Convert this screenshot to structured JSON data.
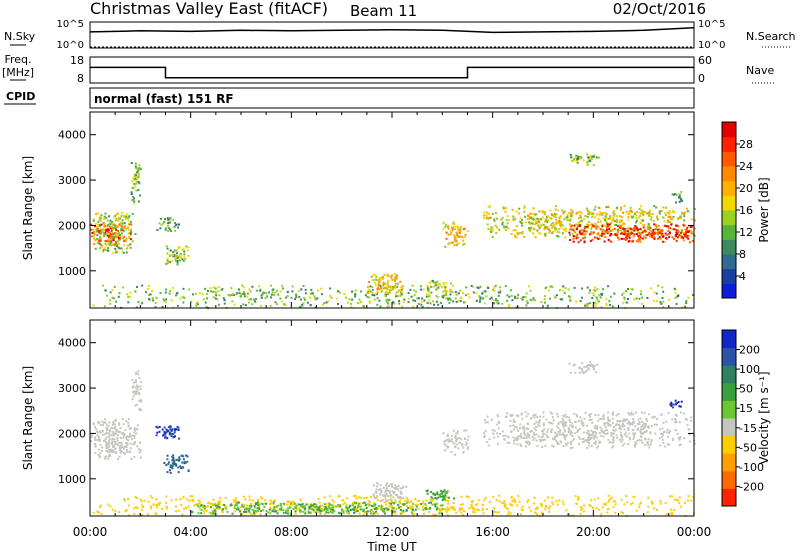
{
  "header": {
    "radar": "Christmas Valley East (fitACF)",
    "beam": "Beam 11",
    "date": "02/Oct/2016"
  },
  "params": {
    "nsky_label": "N.Sky",
    "nsky_ticks": [
      "10^5",
      "10^0"
    ],
    "nsearch_label": "N.Search",
    "nsearch_ticks": [
      "10^5",
      "10^0"
    ],
    "freq_label_1": "Freq.",
    "freq_label_2": "[MHz]",
    "freq_ticks": [
      "18",
      "8"
    ],
    "nave_label": "Nave",
    "nave_ticks": [
      "60",
      "0"
    ],
    "cpid_label": "CPID",
    "cpid_value": "normal (fast) 151 RF"
  },
  "axes": {
    "ylabel": "Slant Range [km]",
    "yticks": [
      "4000",
      "3000",
      "2000",
      "1000"
    ],
    "xlabel": "Time UT",
    "xticks": [
      "00:00",
      "04:00",
      "08:00",
      "12:00",
      "16:00",
      "20:00",
      "00:00"
    ]
  },
  "colorbars": {
    "power": {
      "label": "Power [dB]",
      "ticks": [
        "28",
        "24",
        "20",
        "16",
        "12",
        "8",
        "4"
      ],
      "colors": [
        "#0b1fd6",
        "#1a3fa0",
        "#2f6b8f",
        "#3d8a5c",
        "#57b43a",
        "#9bd21e",
        "#f0d800",
        "#ffb000",
        "#ff8a00",
        "#ff5a00",
        "#ff2200",
        "#e00000"
      ]
    },
    "velocity": {
      "label": "Velocity [m s⁻¹]",
      "ticks": [
        "200",
        "100",
        "50",
        "15",
        "-15",
        "-50",
        "-100",
        "-200"
      ],
      "colors": [
        "#1226c8",
        "#2b54a8",
        "#2f8060",
        "#38a040",
        "#6cc830",
        "#c6c6c0",
        "#ffcc00",
        "#ffa000",
        "#ff6a00",
        "#ff2200"
      ]
    }
  },
  "chart_data": [
    {
      "type": "line",
      "title": "N.Sky / N.Search",
      "x": [
        0,
        2,
        4,
        6,
        8,
        10,
        12,
        14,
        16,
        18,
        20,
        22,
        24
      ],
      "series": [
        {
          "name": "N.Sky",
          "values": [
            3.1,
            3.3,
            3.2,
            3.4,
            3.3,
            3.4,
            3.5,
            3.4,
            3.0,
            3.1,
            3.2,
            3.4,
            3.9
          ]
        }
      ],
      "ylim": [
        0,
        5
      ]
    },
    {
      "type": "line",
      "title": "Freq. / Nave",
      "x": [
        0,
        3.0,
        3.0,
        15.0,
        15.0,
        24
      ],
      "series": [
        {
          "name": "Freq. [MHz]",
          "values": [
            14,
            14,
            10,
            10,
            14,
            14
          ]
        },
        {
          "name": "Nave",
          "values": [
            18,
            18,
            18,
            18,
            18,
            18
          ]
        }
      ],
      "ylim": [
        8,
        18
      ]
    },
    {
      "type": "heatmap",
      "title": "Power [dB]",
      "xlabel": "Time UT",
      "ylabel": "Slant Range [km]",
      "xlim": [
        0,
        24
      ],
      "ylim": [
        180,
        4500
      ],
      "regions": [
        {
          "t0": 0.0,
          "t1": 1.6,
          "r0": 1550,
          "r1": 2050,
          "value": 26
        },
        {
          "t0": 0.1,
          "t1": 1.8,
          "r0": 1400,
          "r1": 2300,
          "value": 14
        },
        {
          "t0": 1.6,
          "t1": 2.0,
          "r0": 2500,
          "r1": 3400,
          "value": 12
        },
        {
          "t0": 2.6,
          "t1": 3.5,
          "r0": 1900,
          "r1": 2200,
          "value": 10
        },
        {
          "t0": 2.9,
          "t1": 3.9,
          "r0": 1150,
          "r1": 1600,
          "value": 13
        },
        {
          "t0": 0.0,
          "t1": 24.0,
          "r0": 200,
          "r1": 700,
          "value": 12
        },
        {
          "t0": 11.0,
          "t1": 12.5,
          "r0": 500,
          "r1": 950,
          "value": 18
        },
        {
          "t0": 13.2,
          "t1": 14.4,
          "r0": 550,
          "r1": 800,
          "value": 14
        },
        {
          "t0": 14.0,
          "t1": 15.0,
          "r0": 1550,
          "r1": 2100,
          "value": 18
        },
        {
          "t0": 15.6,
          "t1": 24.0,
          "r0": 1750,
          "r1": 2450,
          "value": 16
        },
        {
          "t0": 19.0,
          "t1": 24.0,
          "r0": 1650,
          "r1": 2050,
          "value": 26
        },
        {
          "t0": 19.0,
          "t1": 20.2,
          "r0": 3350,
          "r1": 3600,
          "value": 12
        },
        {
          "t0": 23.0,
          "t1": 23.5,
          "r0": 2500,
          "r1": 2800,
          "value": 10
        }
      ]
    },
    {
      "type": "heatmap",
      "title": "Velocity [m s⁻¹]",
      "xlabel": "Time UT",
      "ylabel": "Slant Range [km]",
      "xlim": [
        0,
        24
      ],
      "ylim": [
        180,
        4500
      ],
      "regions": [
        {
          "t0": 0.0,
          "t1": 2.0,
          "r0": 1450,
          "r1": 2350,
          "value": 0
        },
        {
          "t0": 1.6,
          "t1": 2.0,
          "r0": 2500,
          "r1": 3400,
          "value": 0
        },
        {
          "t0": 2.6,
          "t1": 3.5,
          "r0": 1900,
          "r1": 2200,
          "value": 150
        },
        {
          "t0": 2.9,
          "t1": 3.9,
          "r0": 1150,
          "r1": 1600,
          "value": 80
        },
        {
          "t0": 0.0,
          "t1": 24.0,
          "r0": 200,
          "r1": 650,
          "value": -30
        },
        {
          "t0": 4.0,
          "t1": 14.0,
          "r0": 250,
          "r1": 500,
          "value": 30
        },
        {
          "t0": 11.2,
          "t1": 12.6,
          "r0": 500,
          "r1": 950,
          "value": 0
        },
        {
          "t0": 13.3,
          "t1": 14.5,
          "r0": 550,
          "r1": 800,
          "value": 40
        },
        {
          "t0": 14.0,
          "t1": 15.0,
          "r0": 1550,
          "r1": 2100,
          "value": 0
        },
        {
          "t0": 15.6,
          "t1": 24.0,
          "r0": 1700,
          "r1": 2500,
          "value": 0
        },
        {
          "t0": 19.0,
          "t1": 20.2,
          "r0": 3350,
          "r1": 3600,
          "value": 0
        },
        {
          "t0": 23.0,
          "t1": 23.5,
          "r0": 2550,
          "r1": 2750,
          "value": 150
        }
      ]
    }
  ]
}
